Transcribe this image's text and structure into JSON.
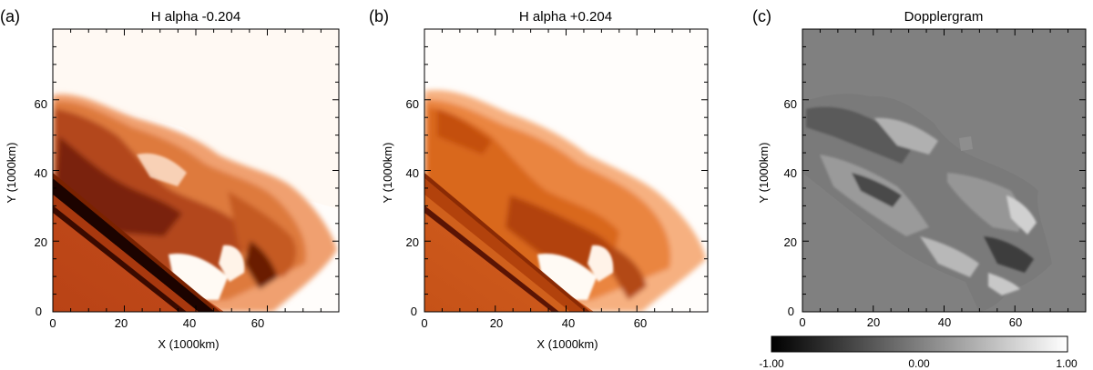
{
  "panels": [
    {
      "id": "a",
      "panel_label": "(a)",
      "title": "H alpha -0.204",
      "xlabel": "X (1000km)",
      "ylabel": "Y (1000km)",
      "x_ticks": [
        "0",
        "20",
        "40",
        "60"
      ],
      "y_ticks": [
        "0",
        "20",
        "40",
        "60"
      ],
      "colormap": "heat",
      "show_xlabel": true
    },
    {
      "id": "b",
      "panel_label": "(b)",
      "title": "H alpha +0.204",
      "xlabel": "X (1000km)",
      "ylabel": "Y (1000km)",
      "x_ticks": [
        "0",
        "20",
        "40",
        "60"
      ],
      "y_ticks": [
        "0",
        "20",
        "40",
        "60"
      ],
      "colormap": "heat",
      "show_xlabel": true
    },
    {
      "id": "c",
      "panel_label": "(c)",
      "title": "Dopplergram",
      "xlabel": "",
      "ylabel": "Y (1000km)",
      "x_ticks": [
        "0",
        "20",
        "40",
        "60"
      ],
      "y_ticks": [
        "0",
        "20",
        "40",
        "60"
      ],
      "colormap": "gray",
      "show_xlabel": false
    }
  ],
  "colorbar": {
    "tick_labels": [
      "-1.00",
      "0.00",
      "1.00"
    ],
    "range": [
      -1.0,
      1.0
    ]
  },
  "colors": {
    "heat_dark": "#2a0400",
    "heat_mid": "#b03a10",
    "heat_light": "#f6a050",
    "doppler_background": "#808080"
  }
}
